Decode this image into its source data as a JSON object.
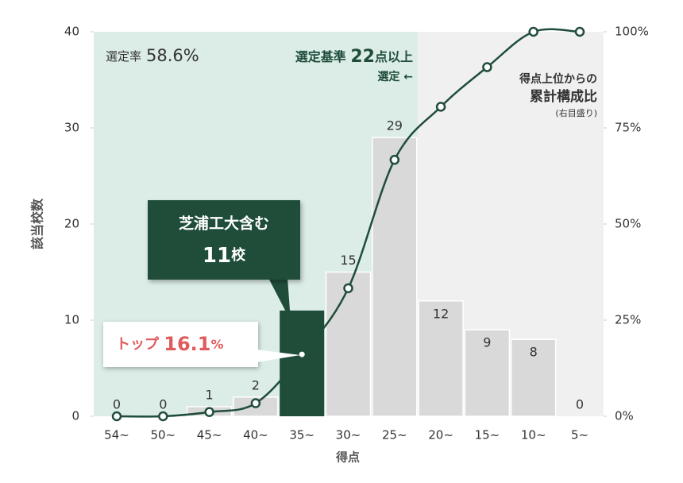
{
  "chart_data": {
    "type": "bar",
    "categories": [
      "54~",
      "50~",
      "45~",
      "40~",
      "35~",
      "30~",
      "25~",
      "20~",
      "15~",
      "10~",
      "5~"
    ],
    "values": [
      0,
      0,
      1,
      2,
      11,
      15,
      29,
      12,
      9,
      8,
      0
    ],
    "color": "#d9d9d9",
    "highlight_color": "#1f4d3a",
    "highlight": "35~",
    "selected_through": "25~",
    "selected_bg": "#dcede8",
    "other_bg": "#f0f0f0",
    "line": {
      "axis": "y2",
      "color": "#1f4d3a",
      "values": [
        0,
        0,
        1.1,
        3.4,
        16.1,
        33.3,
        66.7,
        80.5,
        90.8,
        100,
        100
      ]
    },
    "ylim": [
      0,
      40
    ],
    "yticks": [
      0,
      10,
      20,
      30,
      40
    ],
    "y2lim": [
      0,
      100
    ],
    "y2ticks": [
      {
        "value": 0,
        "label": "0%"
      },
      {
        "value": 25,
        "label": "25%"
      },
      {
        "value": 50,
        "label": "50%"
      },
      {
        "value": 75,
        "label": "75%"
      },
      {
        "value": 100,
        "label": "100%"
      }
    ],
    "ylabel": "該当校数",
    "xlabel": "得点",
    "annotations": {
      "selection_rate": [
        "選定率",
        "58.6%"
      ],
      "criterion": [
        "選定基準 ",
        "22",
        "点以上"
      ],
      "criterion_arrow": "選定 ←",
      "line_label": [
        "得点上位からの",
        "累計構成比",
        "(右目盛り)"
      ],
      "callout": [
        "芝浦工大含む",
        "11",
        "校"
      ],
      "top": [
        "トップ ",
        "16.1",
        "%"
      ]
    }
  }
}
